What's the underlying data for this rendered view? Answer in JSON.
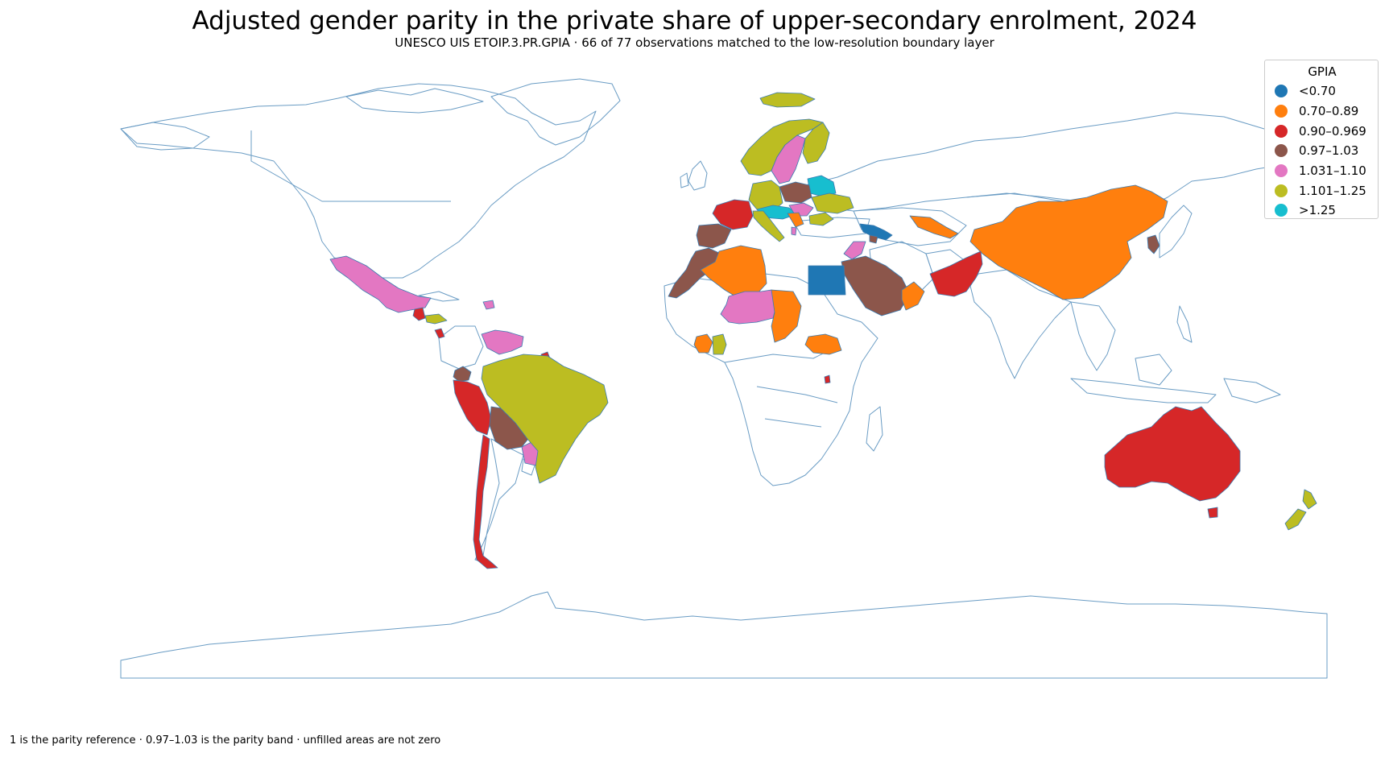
{
  "title": "Adjusted gender parity in the private share of upper-secondary enrolment, 2024",
  "subtitle": "UNESCO UIS ETOIP.3.PR.GPIA · 66 of 77 observations matched to the low-resolution boundary layer",
  "footnote": "1 is the parity reference · 0.97–1.03 is the parity band · unfilled areas are not zero",
  "legend": {
    "title": "GPIA",
    "items": [
      {
        "label": "<0.70",
        "color": "#1f77b4"
      },
      {
        "label": "0.70–0.89",
        "color": "#ff7f0e"
      },
      {
        "label": "0.90–0.969",
        "color": "#d62728"
      },
      {
        "label": "0.97–1.03",
        "color": "#8c564b"
      },
      {
        "label": "1.031–1.10",
        "color": "#e377c2"
      },
      {
        "label": "1.101–1.25",
        "color": "#bcbd22"
      },
      {
        "label": ">1.25",
        "color": "#17becf"
      }
    ]
  },
  "map_data": {
    "indicator": "ETOIP.3.PR.GPIA",
    "year": 2024,
    "observations_total": 77,
    "observations_matched": 66,
    "filled_regions": [
      {
        "id": "iceland",
        "bin": "1.101–1.25"
      },
      {
        "id": "norway",
        "bin": "1.101–1.25"
      },
      {
        "id": "sweden",
        "bin": "1.031–1.10"
      },
      {
        "id": "finland",
        "bin": "1.101–1.25"
      },
      {
        "id": "baltics",
        "bin": ">1.25"
      },
      {
        "id": "poland",
        "bin": "0.97–1.03"
      },
      {
        "id": "germany",
        "bin": "1.101–1.25"
      },
      {
        "id": "czechia-austria",
        "bin": ">1.25"
      },
      {
        "id": "hungary-slovakia",
        "bin": "1.031–1.10"
      },
      {
        "id": "ukraine",
        "bin": "1.101–1.25"
      },
      {
        "id": "romania",
        "bin": "1.101–1.25"
      },
      {
        "id": "balkans",
        "bin": "0.70–0.89"
      },
      {
        "id": "albania",
        "bin": "1.031–1.10"
      },
      {
        "id": "italy",
        "bin": "1.101–1.25"
      },
      {
        "id": "france",
        "bin": "0.90–0.969"
      },
      {
        "id": "iberia",
        "bin": "0.97–1.03"
      },
      {
        "id": "georgia-azerbaijan",
        "bin": "<0.70"
      },
      {
        "id": "armenia",
        "bin": "0.97–1.03"
      },
      {
        "id": "uzbekistan",
        "bin": "0.70–0.89"
      },
      {
        "id": "china",
        "bin": "0.70–0.89"
      },
      {
        "id": "korea",
        "bin": "0.97–1.03"
      },
      {
        "id": "pakistan",
        "bin": "0.90–0.969"
      },
      {
        "id": "saudi-arabia",
        "bin": "0.97–1.03"
      },
      {
        "id": "oman",
        "bin": "0.70–0.89"
      },
      {
        "id": "jordan-iraq",
        "bin": "1.031–1.10"
      },
      {
        "id": "egypt",
        "bin": "<0.70"
      },
      {
        "id": "morocco",
        "bin": "0.97–1.03"
      },
      {
        "id": "algeria",
        "bin": "0.70–0.89"
      },
      {
        "id": "niger-mali",
        "bin": "1.031–1.10"
      },
      {
        "id": "chad",
        "bin": "0.70–0.89"
      },
      {
        "id": "guinea-sl",
        "bin": "0.70–0.89"
      },
      {
        "id": "cote-divoire",
        "bin": "1.101–1.25"
      },
      {
        "id": "south-sudan",
        "bin": "0.70–0.89"
      },
      {
        "id": "rwanda",
        "bin": "0.90–0.969"
      },
      {
        "id": "mexico",
        "bin": "1.031–1.10"
      },
      {
        "id": "guatemala",
        "bin": "0.90–0.969"
      },
      {
        "id": "belize-honduras",
        "bin": "1.101–1.25"
      },
      {
        "id": "costa-rica",
        "bin": "0.90–0.969"
      },
      {
        "id": "dominican-republic",
        "bin": "1.031–1.10"
      },
      {
        "id": "venezuela",
        "bin": "1.031–1.10"
      },
      {
        "id": "suriname",
        "bin": "0.90–0.969"
      },
      {
        "id": "ecuador",
        "bin": "0.97–1.03"
      },
      {
        "id": "peru",
        "bin": "0.90–0.969"
      },
      {
        "id": "bolivia",
        "bin": "0.97–1.03"
      },
      {
        "id": "paraguay",
        "bin": "1.031–1.10"
      },
      {
        "id": "brazil",
        "bin": "1.101–1.25"
      },
      {
        "id": "chile",
        "bin": "0.90–0.969"
      },
      {
        "id": "australia",
        "bin": "0.90–0.969"
      },
      {
        "id": "new-zealand",
        "bin": "1.101–1.25"
      }
    ]
  }
}
